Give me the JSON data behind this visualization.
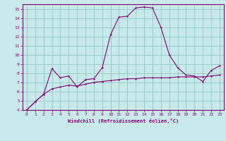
{
  "xlabel": "Windchill (Refroidissement éolien,°C)",
  "xlim": [
    -0.5,
    23.5
  ],
  "ylim": [
    4,
    15.5
  ],
  "xticks": [
    0,
    1,
    2,
    3,
    4,
    5,
    6,
    7,
    8,
    9,
    10,
    11,
    12,
    13,
    14,
    15,
    16,
    17,
    18,
    19,
    20,
    21,
    22,
    23
  ],
  "yticks": [
    4,
    5,
    6,
    7,
    8,
    9,
    10,
    11,
    12,
    13,
    14,
    15
  ],
  "bg_color": "#c8eaea",
  "line_color": "#880077",
  "grid_color": "#99cccc",
  "line1_x": [
    0,
    1,
    2,
    3,
    4,
    5,
    6,
    7,
    8,
    9,
    10,
    11,
    12,
    13,
    14,
    15,
    16,
    17,
    18,
    19,
    20,
    21,
    22,
    23
  ],
  "line1_y": [
    4.0,
    4.9,
    5.7,
    6.3,
    6.5,
    6.7,
    6.6,
    6.8,
    7.0,
    7.1,
    7.2,
    7.3,
    7.4,
    7.4,
    7.5,
    7.5,
    7.5,
    7.5,
    7.6,
    7.6,
    7.6,
    7.6,
    7.7,
    7.8
  ],
  "line2_x": [
    0,
    1,
    2,
    3,
    4,
    5,
    6,
    7,
    8,
    9,
    10,
    11,
    12,
    13,
    14,
    15,
    16,
    17,
    18,
    19,
    20,
    21,
    22,
    23
  ],
  "line2_y": [
    4.0,
    4.9,
    5.7,
    8.5,
    7.5,
    7.7,
    6.5,
    7.3,
    7.4,
    8.6,
    12.2,
    14.1,
    14.2,
    15.1,
    15.2,
    15.1,
    13.0,
    10.0,
    8.6,
    7.8,
    7.7,
    7.1,
    8.3,
    8.8
  ]
}
